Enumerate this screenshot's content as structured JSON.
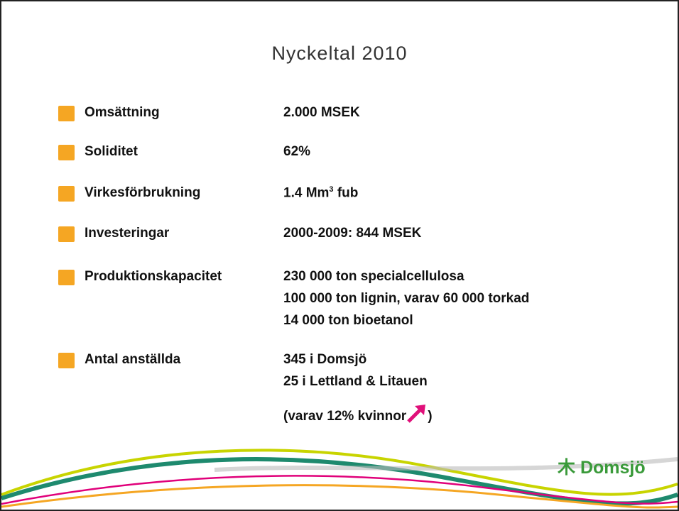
{
  "title": "Nyckeltal 2010",
  "rows": [
    {
      "label": "Omsättning",
      "lines": [
        "2.000 MSEK"
      ]
    },
    {
      "label": "Soliditet",
      "lines": [
        "62%"
      ]
    },
    {
      "label": "Virkesförbrukning",
      "lines": [
        {
          "base": "1.4 Mm",
          "sup": "3",
          "rest": " fub"
        }
      ]
    },
    {
      "label": "Investeringar",
      "lines": [
        "2000-2009: 844 MSEK"
      ]
    },
    {
      "label": "Produktionskapacitet",
      "lines": [
        "230 000 ton specialcellulosa",
        "100 000 ton lignin, varav 60 000 torkad",
        "14 000 ton bioetanol"
      ]
    },
    {
      "label": "Antal anställda",
      "lines": [
        "345 i Domsjö",
        "25 i Lettland & Litauen",
        {
          "base": "(varav 12% kvinnor",
          "rest": ")"
        }
      ]
    }
  ],
  "logo": "Domsjö"
}
